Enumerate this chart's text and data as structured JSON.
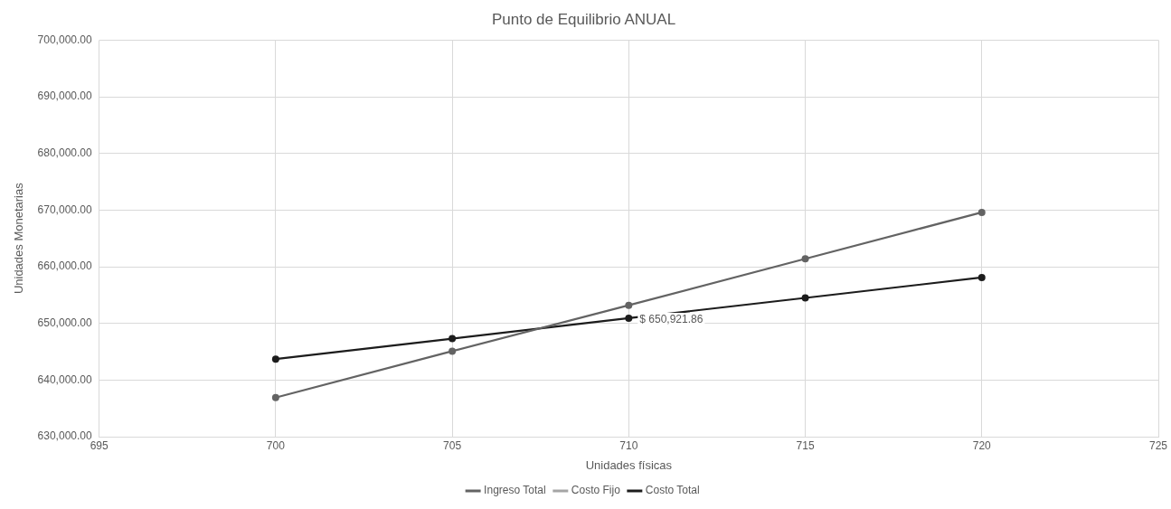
{
  "chart_data": {
    "type": "line",
    "title": "Punto de Equilibrio ANUAL",
    "xlabel": "Unidades físicas",
    "ylabel": "Unidades Monetarias",
    "x": [
      700,
      705,
      710,
      715,
      720
    ],
    "series": [
      {
        "name": "Ingreso Total",
        "color": "#636363",
        "values": [
          636900,
          645100,
          653200,
          661400,
          669600
        ]
      },
      {
        "name": "Costo Fijo",
        "color": "#a5a5a5",
        "values": [
          null,
          null,
          null,
          null,
          null
        ]
      },
      {
        "name": "Costo Total",
        "color": "#1c1c1c",
        "values": [
          643700,
          647300,
          650921.86,
          654500,
          658100
        ],
        "value_labels": [
          null,
          null,
          "$ 650,921.86",
          null,
          null
        ]
      }
    ],
    "xlim": [
      695,
      725
    ],
    "xticks": [
      695,
      700,
      705,
      710,
      715,
      720,
      725
    ],
    "ylim": [
      630000,
      700000
    ],
    "yticks": [
      {
        "value": 630000,
        "label": "630,000.00"
      },
      {
        "value": 640000,
        "label": "640,000.00"
      },
      {
        "value": 650000,
        "label": "650,000.00"
      },
      {
        "value": 660000,
        "label": "660,000.00"
      },
      {
        "value": 670000,
        "label": "670,000.00"
      },
      {
        "value": 680000,
        "label": "680,000.00"
      },
      {
        "value": 690000,
        "label": "690,000.00"
      },
      {
        "value": 700000,
        "label": "700,000.00"
      }
    ],
    "grid": true,
    "legend": "bottom",
    "marker": "circle",
    "line_style": "solid"
  }
}
